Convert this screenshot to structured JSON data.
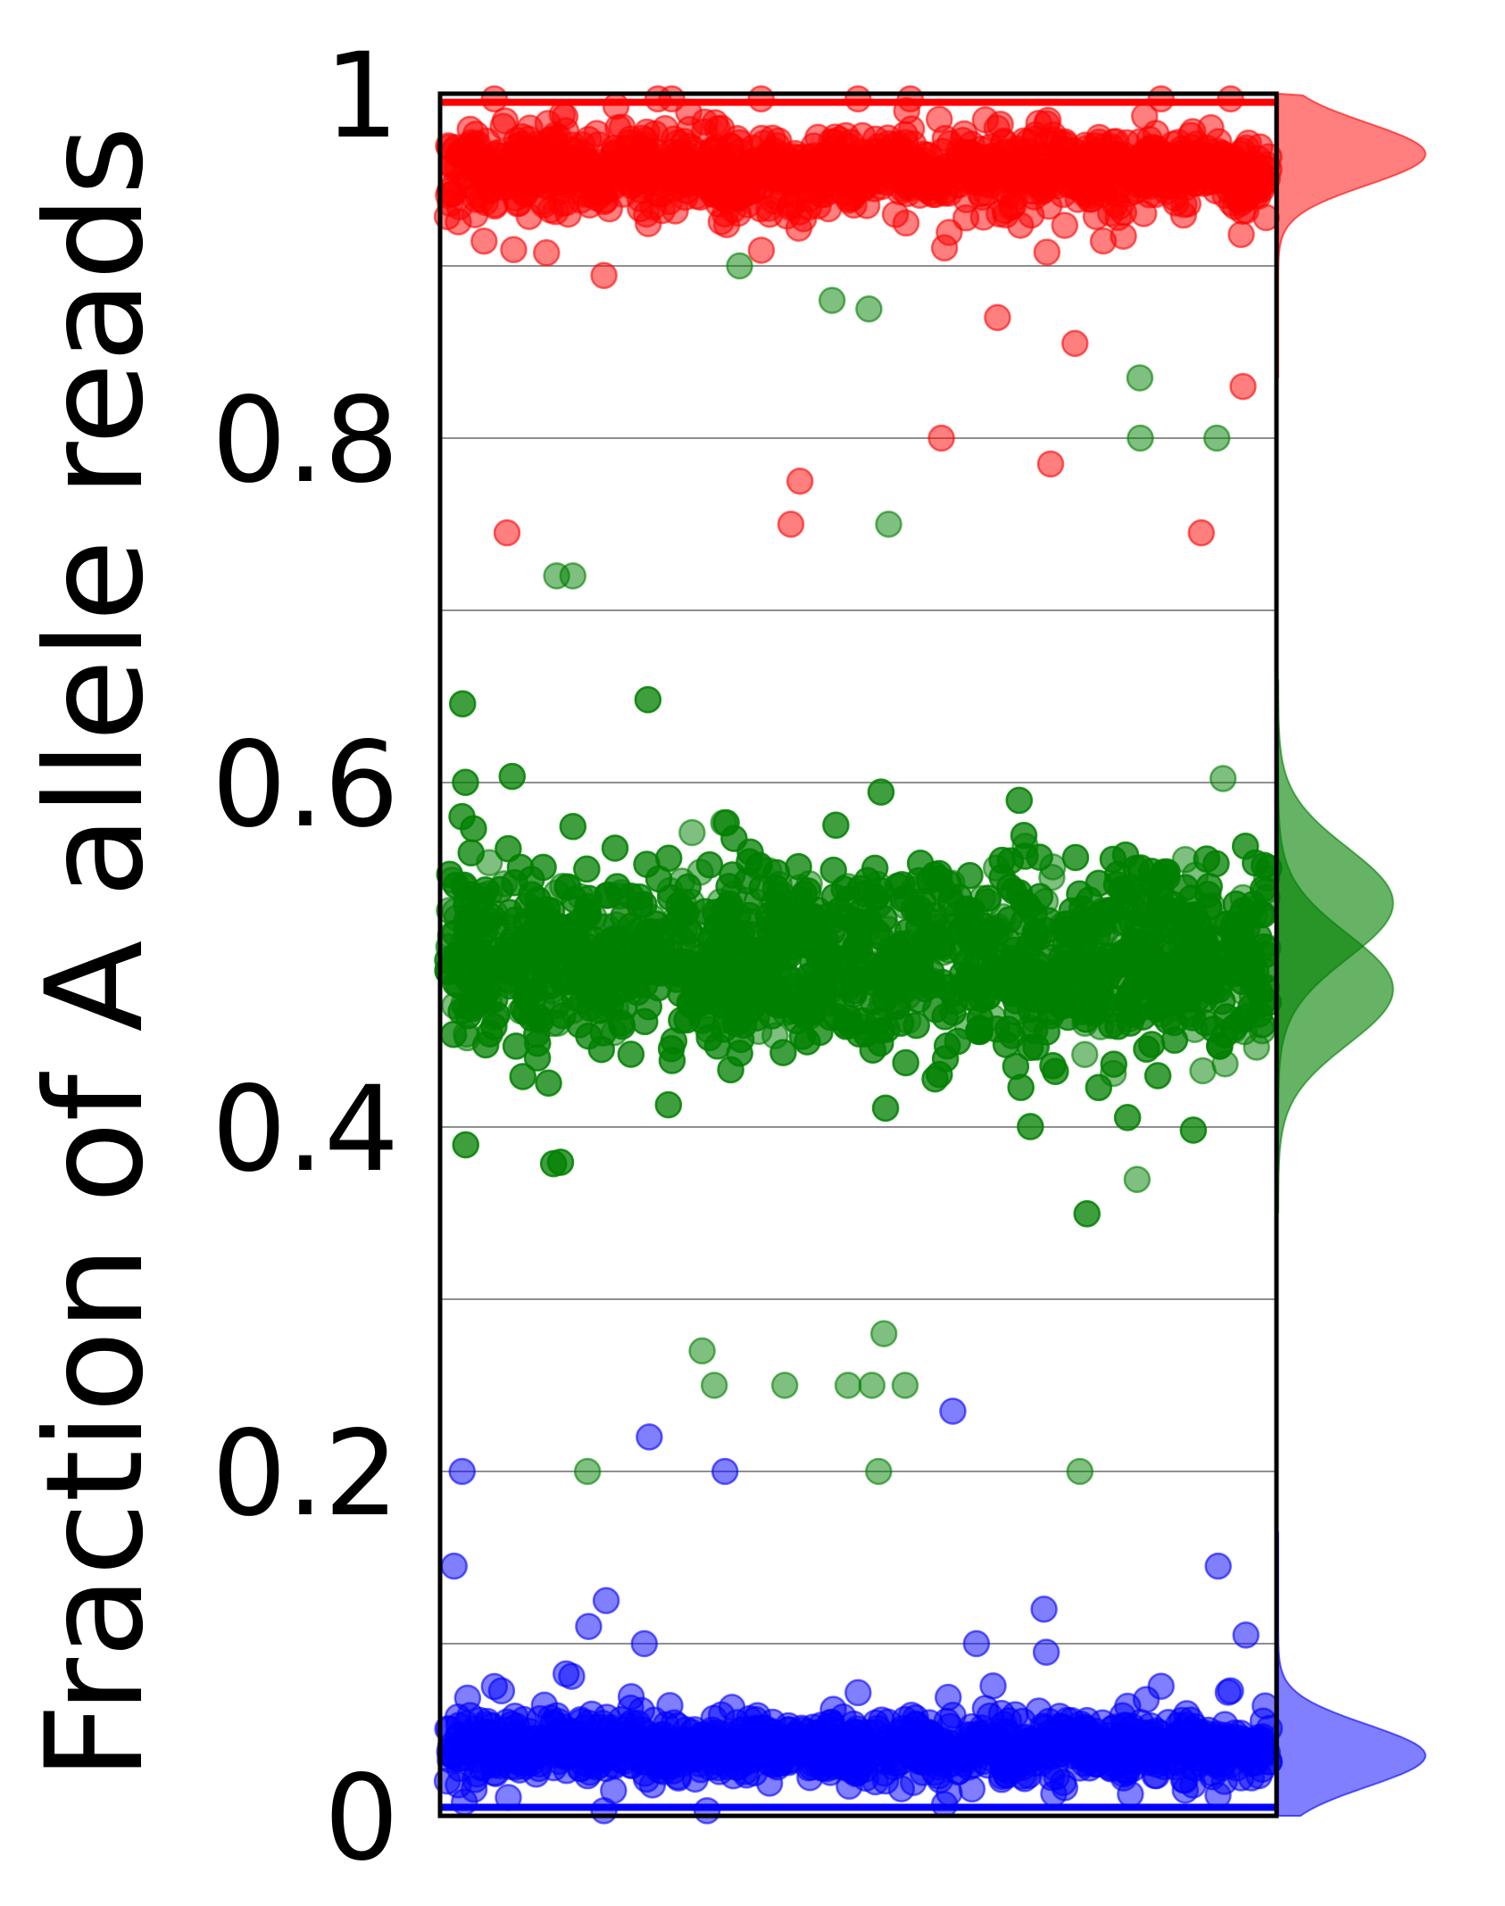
{
  "chart_data": {
    "type": "scatter",
    "title": "",
    "xlabel": "",
    "ylabel": "Fraction of A allele reads",
    "ylim": [
      0,
      1
    ],
    "yticks": [
      0,
      0.2,
      0.4,
      0.6,
      0.8,
      1
    ],
    "yticklabels": [
      "0",
      "0.2",
      "0.4",
      "0.6",
      "0.8",
      "1"
    ],
    "grid_y": [
      0.1,
      0.2,
      0.3,
      0.4,
      0.5,
      0.6,
      0.7,
      0.8,
      0.9
    ],
    "marginal_density": "right",
    "series": [
      {
        "color": "#ff0000",
        "points_approx": 1100,
        "band_center": 0.955,
        "band_spread": 0.02,
        "outliers": [
          0.87,
          0.855,
          0.83,
          0.8,
          0.785,
          0.775,
          0.75,
          0.745,
          0.745
        ],
        "density_peaks": [
          0.965
        ]
      },
      {
        "color": "#008000",
        "points_approx": 2200,
        "band_center": 0.5,
        "band_spread": 0.045,
        "outliers": [
          0.9,
          0.88,
          0.875,
          0.835,
          0.8,
          0.8,
          0.75,
          0.72,
          0.72,
          0.28,
          0.27,
          0.25,
          0.25,
          0.25,
          0.25,
          0.25,
          0.2,
          0.2,
          0.2
        ],
        "density_peaks": [
          0.48,
          0.53
        ]
      },
      {
        "color": "#0000ff",
        "points_approx": 1100,
        "band_center": 0.04,
        "band_spread": 0.015,
        "outliers": [
          0.235,
          0.22,
          0.2,
          0.2,
          0.145,
          0.145,
          0.125,
          0.12,
          0.11,
          0.105,
          0.1,
          0.1,
          0.095
        ],
        "density_peaks": [
          0.035
        ]
      }
    ]
  }
}
